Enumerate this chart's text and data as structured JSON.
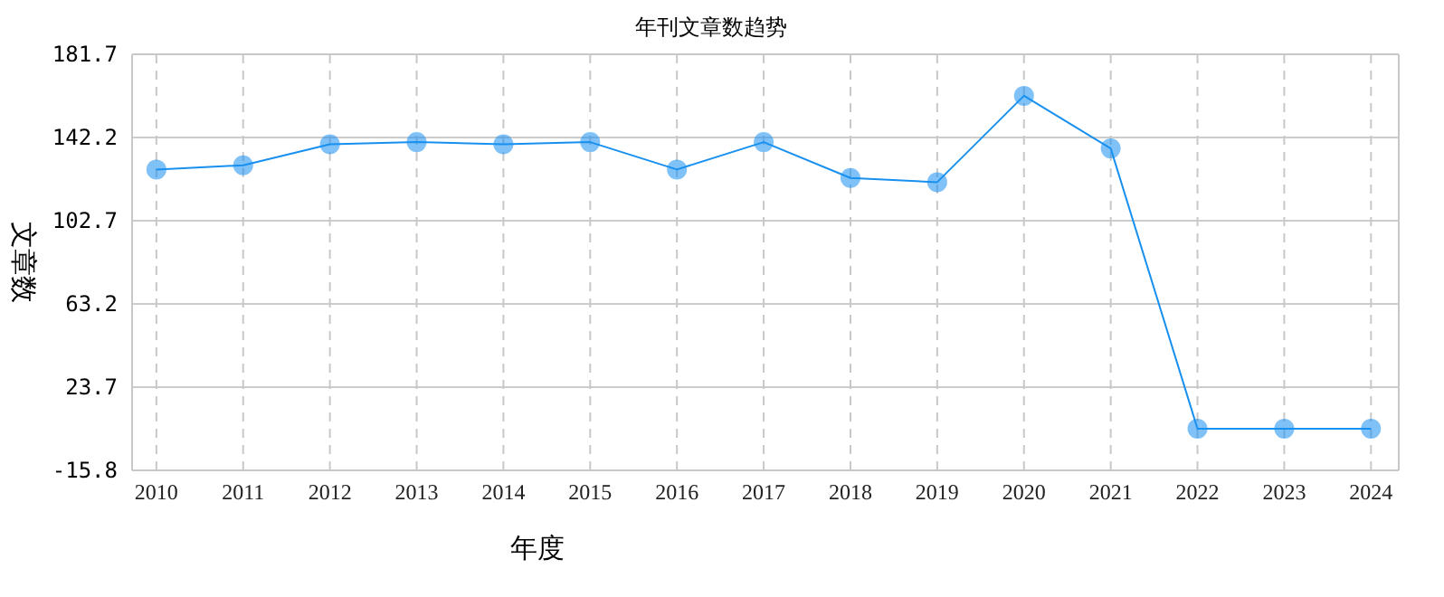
{
  "chart_data": {
    "type": "line",
    "title": "年刊文章数趋势",
    "xlabel": "年度",
    "ylabel": "文章数",
    "categories": [
      "2010",
      "2011",
      "2012",
      "2013",
      "2014",
      "2015",
      "2016",
      "2017",
      "2018",
      "2019",
      "2020",
      "2021",
      "2022",
      "2023",
      "2024"
    ],
    "series": [
      {
        "color": "#1890f0",
        "values": [
          127,
          129,
          139,
          140,
          139,
          140,
          127,
          140,
          123,
          121,
          162,
          137,
          4,
          4,
          4
        ]
      }
    ],
    "ylim": [
      -15.8,
      181.7
    ],
    "yticks": [
      -15.8,
      23.7,
      63.2,
      102.7,
      142.2,
      181.7
    ],
    "grid": true,
    "marker": "circle"
  }
}
